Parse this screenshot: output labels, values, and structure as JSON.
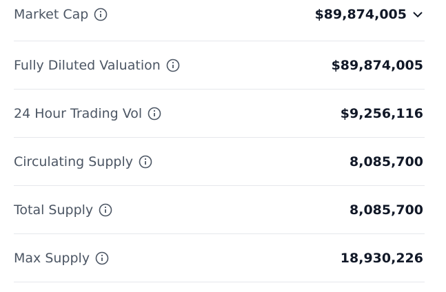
{
  "rows": [
    {
      "label": "Market Cap",
      "value": "$89,874,005"
    },
    {
      "label": "Fully Diluted Valuation",
      "value": "$89,874,005"
    },
    {
      "label": "24 Hour Trading Vol",
      "value": "$9,256,116"
    },
    {
      "label": "Circulating Supply",
      "value": "8,085,700"
    },
    {
      "label": "Total Supply",
      "value": "8,085,700"
    },
    {
      "label": "Max Supply",
      "value": "18,930,226"
    }
  ]
}
